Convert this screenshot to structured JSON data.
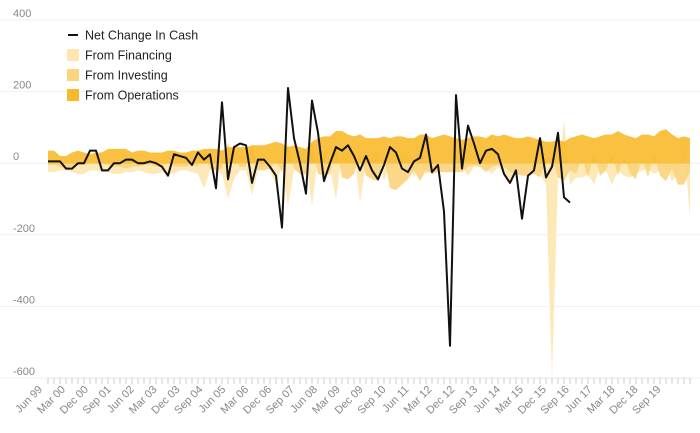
{
  "chart_data": {
    "type": "area",
    "ylim": [
      -600,
      400
    ],
    "yticks": [
      400,
      200,
      0,
      -200,
      -400,
      -600
    ],
    "x_tick_labels": [
      "Jun 99",
      "Mar 00",
      "Dec 00",
      "Sep 01",
      "Jun 02",
      "Mar 03",
      "Dec 03",
      "Sep 04",
      "Jun 05",
      "Mar 06",
      "Dec 06",
      "Sep 07",
      "Jun 08",
      "Mar 09",
      "Dec 09",
      "Sep 10",
      "Jun 11",
      "Mar 12",
      "Dec 12",
      "Sep 13",
      "Jun 14",
      "Mar 15",
      "Dec 15",
      "Sep 16",
      "Jun 17",
      "Mar 18",
      "Dec 18",
      "Sep 19"
    ],
    "legend": [
      {
        "name": "Net Change In Cash",
        "kind": "line",
        "color": "#111111"
      },
      {
        "name": "From Financing",
        "kind": "area",
        "color": "#fde6b0"
      },
      {
        "name": "From Investing",
        "kind": "area",
        "color": "#fbd47c"
      },
      {
        "name": "From Operations",
        "kind": "area",
        "color": "#f8ba2a"
      }
    ],
    "series": [
      {
        "name": "From Operations",
        "values": [
          35,
          35,
          20,
          20,
          30,
          35,
          30,
          25,
          30,
          30,
          40,
          40,
          40,
          40,
          30,
          35,
          35,
          30,
          30,
          30,
          35,
          35,
          30,
          30,
          35,
          35,
          40,
          40,
          40,
          35,
          45,
          45,
          45,
          45,
          50,
          50,
          50,
          55,
          60,
          55,
          45,
          50,
          45,
          40,
          60,
          70,
          75,
          75,
          90,
          90,
          80,
          75,
          80,
          70,
          70,
          70,
          75,
          70,
          75,
          75,
          70,
          70,
          80,
          80,
          70,
          75,
          80,
          75,
          70,
          65,
          70,
          75,
          75,
          70,
          80,
          75,
          80,
          75,
          70,
          70,
          75,
          70,
          65,
          60,
          60,
          65,
          60,
          70,
          75,
          80,
          75,
          70,
          75,
          80,
          80,
          90,
          80,
          75,
          70,
          80,
          80,
          75,
          90,
          95,
          80,
          70,
          75,
          70
        ]
      },
      {
        "name": "From Investing",
        "values": [
          -5,
          -5,
          -10,
          -15,
          -10,
          -5,
          -5,
          0,
          5,
          0,
          -5,
          -10,
          -10,
          -15,
          -10,
          -10,
          -5,
          -5,
          -10,
          -10,
          0,
          -10,
          -10,
          -10,
          -5,
          -10,
          30,
          -15,
          -20,
          -15,
          55,
          15,
          -10,
          -10,
          50,
          -20,
          -20,
          -15,
          5,
          -25,
          55,
          -15,
          -30,
          -30,
          55,
          -30,
          -35,
          -30,
          50,
          -40,
          -45,
          -30,
          25,
          -35,
          -45,
          -50,
          20,
          -70,
          -75,
          -60,
          -45,
          -20,
          -50,
          -20,
          -30,
          -25,
          -25,
          -25,
          -25,
          -25,
          -10,
          -5,
          -10,
          -25,
          -10,
          -5,
          -10,
          -25,
          -30,
          -35,
          -35,
          -30,
          -40,
          15,
          15,
          -40,
          -50,
          -20,
          -30,
          15,
          -40,
          30,
          -35,
          -20,
          25,
          -35,
          20,
          -30,
          -45,
          15,
          -40,
          25,
          -35,
          -50,
          -15,
          -60,
          -60,
          -25
        ]
      },
      {
        "name": "From Financing",
        "values": [
          -25,
          -25,
          -20,
          -20,
          -25,
          -30,
          -30,
          -20,
          -20,
          -25,
          -25,
          -30,
          -30,
          -25,
          -25,
          -20,
          -25,
          -30,
          -30,
          -25,
          -30,
          -30,
          -20,
          -20,
          -25,
          -30,
          -70,
          -20,
          -20,
          -30,
          -100,
          -45,
          -20,
          -20,
          -90,
          -20,
          -10,
          -20,
          -60,
          -5,
          -120,
          -20,
          0,
          20,
          -120,
          15,
          25,
          -15,
          -100,
          30,
          40,
          35,
          -110,
          0,
          35,
          25,
          -50,
          0,
          -25,
          35,
          20,
          -40,
          -5,
          -30,
          -20,
          -25,
          -10,
          -5,
          -20,
          -10,
          -35,
          -10,
          -10,
          -15,
          -30,
          -10,
          -30,
          -50,
          -20,
          -25,
          -15,
          -15,
          -30,
          -60,
          -600,
          -40,
          120,
          -60,
          -40,
          -40,
          -30,
          -60,
          -10,
          -20,
          -60,
          -20,
          -35,
          -40,
          -30,
          -20,
          -15,
          -30,
          -20,
          -10,
          -50,
          -30,
          50,
          -150
        ]
      },
      {
        "name": "Net Change In Cash",
        "values": [
          5,
          5,
          5,
          -15,
          -15,
          0,
          0,
          35,
          35,
          -20,
          -20,
          0,
          0,
          10,
          10,
          0,
          0,
          5,
          0,
          -10,
          -35,
          25,
          20,
          15,
          -5,
          30,
          10,
          25,
          -70,
          170,
          -45,
          45,
          55,
          50,
          -55,
          10,
          10,
          -10,
          -35,
          -180,
          210,
          70,
          0,
          -85,
          175,
          85,
          -50,
          0,
          45,
          35,
          50,
          20,
          -20,
          20,
          -20,
          -45,
          -5,
          45,
          30,
          -15,
          -25,
          5,
          15,
          80,
          -25,
          -5,
          -135,
          -510,
          190,
          -15,
          105,
          55,
          0,
          35,
          40,
          25,
          -30,
          -55,
          -20,
          -155,
          -35,
          -20,
          70,
          -40,
          -10,
          85,
          -95,
          -110
        ]
      }
    ]
  }
}
